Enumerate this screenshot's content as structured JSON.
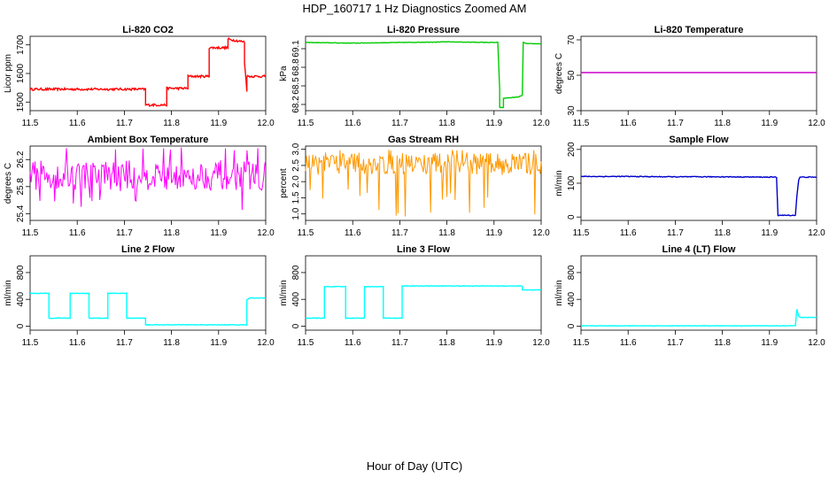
{
  "figure": {
    "title": "HDP_160717  1 Hz Diagnostics Zoomed AM",
    "xlabel": "Hour of Day (UTC)"
  },
  "chart_data": [
    {
      "type": "line",
      "title": "Li-820 CO2",
      "ylabel": "Licor ppm",
      "color": "#ff0000",
      "xlim": [
        11.5,
        12.0
      ],
      "ylim": [
        1470,
        1730
      ],
      "xticks": [
        11.5,
        11.6,
        11.7,
        11.8,
        11.9,
        12.0
      ],
      "yticks": [
        1500,
        1600,
        1700
      ],
      "noise": 4,
      "x": [
        11.5,
        11.745,
        11.745,
        11.79,
        11.79,
        11.835,
        11.835,
        11.88,
        11.88,
        11.92,
        11.92,
        11.955,
        11.955,
        11.96,
        11.96,
        12.0
      ],
      "y": [
        1545,
        1545,
        1490,
        1490,
        1548,
        1548,
        1590,
        1590,
        1690,
        1690,
        1720,
        1710,
        1640,
        1540,
        1590,
        1590
      ]
    },
    {
      "type": "line",
      "title": "Li-820 Pressure",
      "ylabel": "kPa",
      "color": "#00cc00",
      "xlim": [
        11.5,
        12.0
      ],
      "ylim": [
        68.1,
        69.3
      ],
      "xticks": [
        11.5,
        11.6,
        11.7,
        11.8,
        11.9,
        12.0
      ],
      "yticks": [
        68.2,
        68.5,
        68.8,
        69.1
      ],
      "noise": 0.004,
      "x": [
        11.5,
        11.6,
        11.7,
        11.8,
        11.9,
        11.908,
        11.912,
        11.912,
        11.92,
        11.92,
        11.952,
        11.96,
        11.962,
        11.97,
        12.0
      ],
      "y": [
        69.2,
        69.19,
        69.2,
        69.21,
        69.2,
        69.2,
        68.45,
        68.15,
        68.15,
        68.3,
        68.32,
        68.35,
        69.2,
        69.18,
        69.18
      ]
    },
    {
      "type": "line",
      "title": "Li-820 Temperature",
      "ylabel": "degrees C",
      "color": "#cc00cc",
      "xlim": [
        11.5,
        12.0
      ],
      "ylim": [
        30,
        72
      ],
      "xticks": [
        11.5,
        11.6,
        11.7,
        11.8,
        11.9,
        12.0
      ],
      "yticks": [
        30,
        50,
        70
      ],
      "noise": 0,
      "x": [
        11.5,
        12.0
      ],
      "y": [
        51.5,
        51.5
      ]
    },
    {
      "type": "line",
      "title": "Ambient Box Temperature",
      "ylabel": "degrees C",
      "color": "#ff00ff",
      "xlim": [
        11.5,
        12.0
      ],
      "ylim": [
        25.3,
        26.4
      ],
      "xticks": [
        11.5,
        11.6,
        11.7,
        11.8,
        11.9,
        12.0
      ],
      "yticks": [
        25.4,
        25.8,
        26.2
      ],
      "noise": 0,
      "x": [
        11.5,
        12.0
      ],
      "y": [
        26.0,
        26.0
      ],
      "random_band": {
        "center": 25.97,
        "spread": 0.22,
        "low_spikes": 25.45,
        "high": 26.38,
        "n": 240
      }
    },
    {
      "type": "line",
      "title": "Gas Stream RH",
      "ylabel": "percent",
      "color": "#ff9900",
      "xlim": [
        11.5,
        12.0
      ],
      "ylim": [
        0.8,
        3.1
      ],
      "xticks": [
        11.5,
        11.6,
        11.7,
        11.8,
        11.9,
        12.0
      ],
      "yticks": [
        1.0,
        1.5,
        2.0,
        2.5,
        3.0
      ],
      "noise": 0,
      "x": [
        11.5,
        12.0
      ],
      "y": [
        2.6,
        2.6
      ],
      "random_band": {
        "center": 2.55,
        "spread": 0.35,
        "low_spikes": 0.9,
        "high": 3.0,
        "n": 260
      }
    },
    {
      "type": "line",
      "title": "Sample Flow",
      "ylabel": "ml/min",
      "color": "#0000cc",
      "xlim": [
        11.5,
        12.0
      ],
      "ylim": [
        -10,
        210
      ],
      "xticks": [
        11.5,
        11.6,
        11.7,
        11.8,
        11.9,
        12.0
      ],
      "yticks": [
        0,
        100,
        200
      ],
      "noise": 1.2,
      "x": [
        11.5,
        11.6,
        11.7,
        11.8,
        11.9,
        11.915,
        11.918,
        11.955,
        11.958,
        11.962,
        11.965,
        12.0
      ],
      "y": [
        120,
        120,
        119,
        119,
        118,
        118,
        5,
        5,
        60,
        110,
        118,
        118
      ]
    },
    {
      "type": "line",
      "title": "Line 2 Flow",
      "ylabel": "ml/min",
      "color": "#00ffff",
      "xlim": [
        11.5,
        12.0
      ],
      "ylim": [
        -60,
        1050
      ],
      "xticks": [
        11.5,
        11.6,
        11.7,
        11.8,
        11.9,
        12.0
      ],
      "yticks": [
        0,
        400,
        800
      ],
      "noise": 4,
      "x": [
        11.5,
        11.54,
        11.54,
        11.585,
        11.585,
        11.625,
        11.625,
        11.665,
        11.665,
        11.705,
        11.705,
        11.745,
        11.745,
        11.96,
        11.96,
        11.965,
        12.0
      ],
      "y": [
        490,
        490,
        120,
        120,
        490,
        490,
        120,
        120,
        490,
        490,
        120,
        120,
        20,
        20,
        390,
        420,
        420
      ]
    },
    {
      "type": "line",
      "title": "Line 3 Flow",
      "ylabel": "ml/min",
      "color": "#00ffff",
      "xlim": [
        11.5,
        12.0
      ],
      "ylim": [
        -60,
        1050
      ],
      "xticks": [
        11.5,
        11.6,
        11.7,
        11.8,
        11.9,
        12.0
      ],
      "yticks": [
        0,
        400,
        800
      ],
      "noise": 4,
      "x": [
        11.5,
        11.54,
        11.54,
        11.585,
        11.585,
        11.625,
        11.625,
        11.665,
        11.665,
        11.705,
        11.705,
        11.8,
        11.9,
        11.96,
        11.96,
        12.0
      ],
      "y": [
        120,
        120,
        590,
        590,
        120,
        120,
        590,
        590,
        120,
        120,
        600,
        600,
        600,
        600,
        540,
        540
      ]
    },
    {
      "type": "line",
      "title": "Line 4 (LT) Flow",
      "ylabel": "ml/min",
      "color": "#00ffff",
      "xlim": [
        11.5,
        12.0
      ],
      "ylim": [
        -60,
        1050
      ],
      "xticks": [
        11.5,
        11.6,
        11.7,
        11.8,
        11.9,
        12.0
      ],
      "yticks": [
        0,
        400,
        800
      ],
      "noise": 3,
      "x": [
        11.5,
        11.7,
        11.9,
        11.955,
        11.958,
        11.962,
        11.966,
        12.0
      ],
      "y": [
        5,
        5,
        5,
        5,
        250,
        150,
        130,
        130
      ]
    }
  ]
}
